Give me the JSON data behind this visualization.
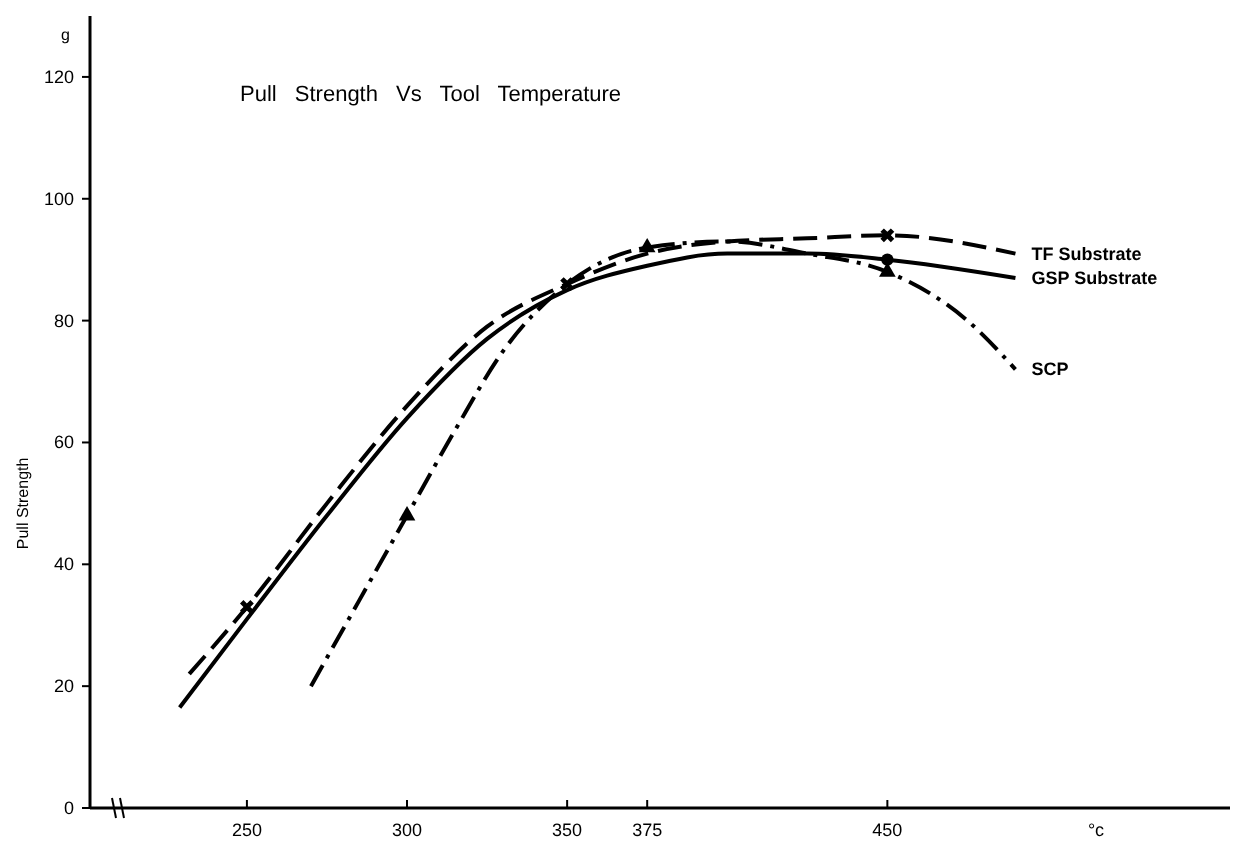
{
  "chart_data": {
    "type": "line",
    "title": "Pull Strength Vs Tool Temperature",
    "xlabel": "°c",
    "ylabel": "Pull Strength",
    "annotations": [
      "g"
    ],
    "xlim": [
      201,
      557
    ],
    "xticks": [
      250,
      300,
      350,
      375,
      450
    ],
    "ylim": [
      0,
      130
    ],
    "yticks": [
      0,
      20,
      40,
      60,
      80,
      100,
      120
    ],
    "grid": false,
    "series": [
      {
        "name": "TF Substrate",
        "color": "#000000",
        "line_style": "dashed",
        "x": [
          232,
          250,
          275,
          300,
          325,
          350,
          375,
          400,
          425,
          450,
          490
        ],
        "values": [
          22,
          33,
          50,
          66,
          79,
          86,
          91,
          93,
          93.5,
          94,
          91
        ]
      },
      {
        "name": "GSP Substrate",
        "color": "#000000",
        "line_style": "solid",
        "x": [
          229,
          250,
          275,
          300,
          325,
          350,
          375,
          400,
          425,
          450,
          490
        ],
        "values": [
          16.5,
          31,
          48,
          64,
          77,
          85,
          89,
          91,
          91,
          90,
          87
        ]
      },
      {
        "name": "SCP",
        "color": "#000000",
        "line_style": "dashdot",
        "x": [
          270,
          285,
          300,
          315,
          330,
          350,
          375,
          400,
          425,
          450,
          475,
          490
        ],
        "values": [
          20,
          34,
          48,
          62,
          75,
          86,
          92,
          93,
          91,
          88,
          80,
          72
        ]
      },
      {
        "type": "scatter",
        "color": "#000000",
        "marker": "cross",
        "x": [
          250,
          350,
          450
        ],
        "values": [
          33,
          86,
          94
        ]
      },
      {
        "type": "scatter",
        "color": "#000000",
        "marker": "triangle",
        "x": [
          300,
          375,
          450
        ],
        "values": [
          48,
          92,
          88
        ]
      },
      {
        "type": "scatter",
        "color": "#000000",
        "marker": "circle",
        "x": [
          450
        ],
        "values": [
          90
        ]
      }
    ]
  }
}
